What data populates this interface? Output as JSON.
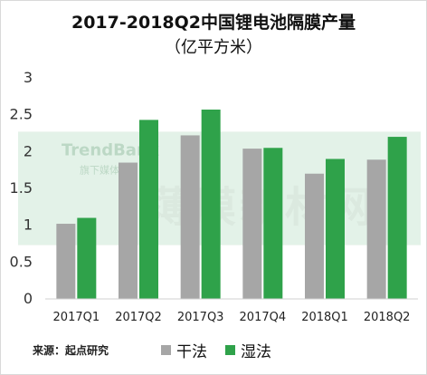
{
  "title": "2017-2018Q2中国锂电池隔膜产量",
  "subtitle": "（亿平方米）",
  "source": "来源：起点研究",
  "watermark": {
    "brand": "TrendBank",
    "badge": "旗下媒体",
    "site": "薄膜新材网"
  },
  "colors": {
    "dry": "#a6a6a6",
    "wet": "#2fa24a",
    "watermark_band": "#d9eee0"
  },
  "chart_data": {
    "type": "bar",
    "categories": [
      "2017Q1",
      "2017Q2",
      "2017Q3",
      "2017Q4",
      "2018Q1",
      "2018Q2"
    ],
    "series": [
      {
        "name": "干法",
        "values": [
          1.02,
          1.85,
          2.22,
          2.04,
          1.7,
          1.89
        ]
      },
      {
        "name": "湿法",
        "values": [
          1.1,
          2.43,
          2.57,
          2.05,
          1.9,
          2.2
        ]
      }
    ],
    "ylim": [
      0,
      3
    ],
    "yticks": [
      "0",
      "0.5",
      "1",
      "1.5",
      "2",
      "2.5",
      "3"
    ],
    "grid": false,
    "legend": "bottom"
  }
}
